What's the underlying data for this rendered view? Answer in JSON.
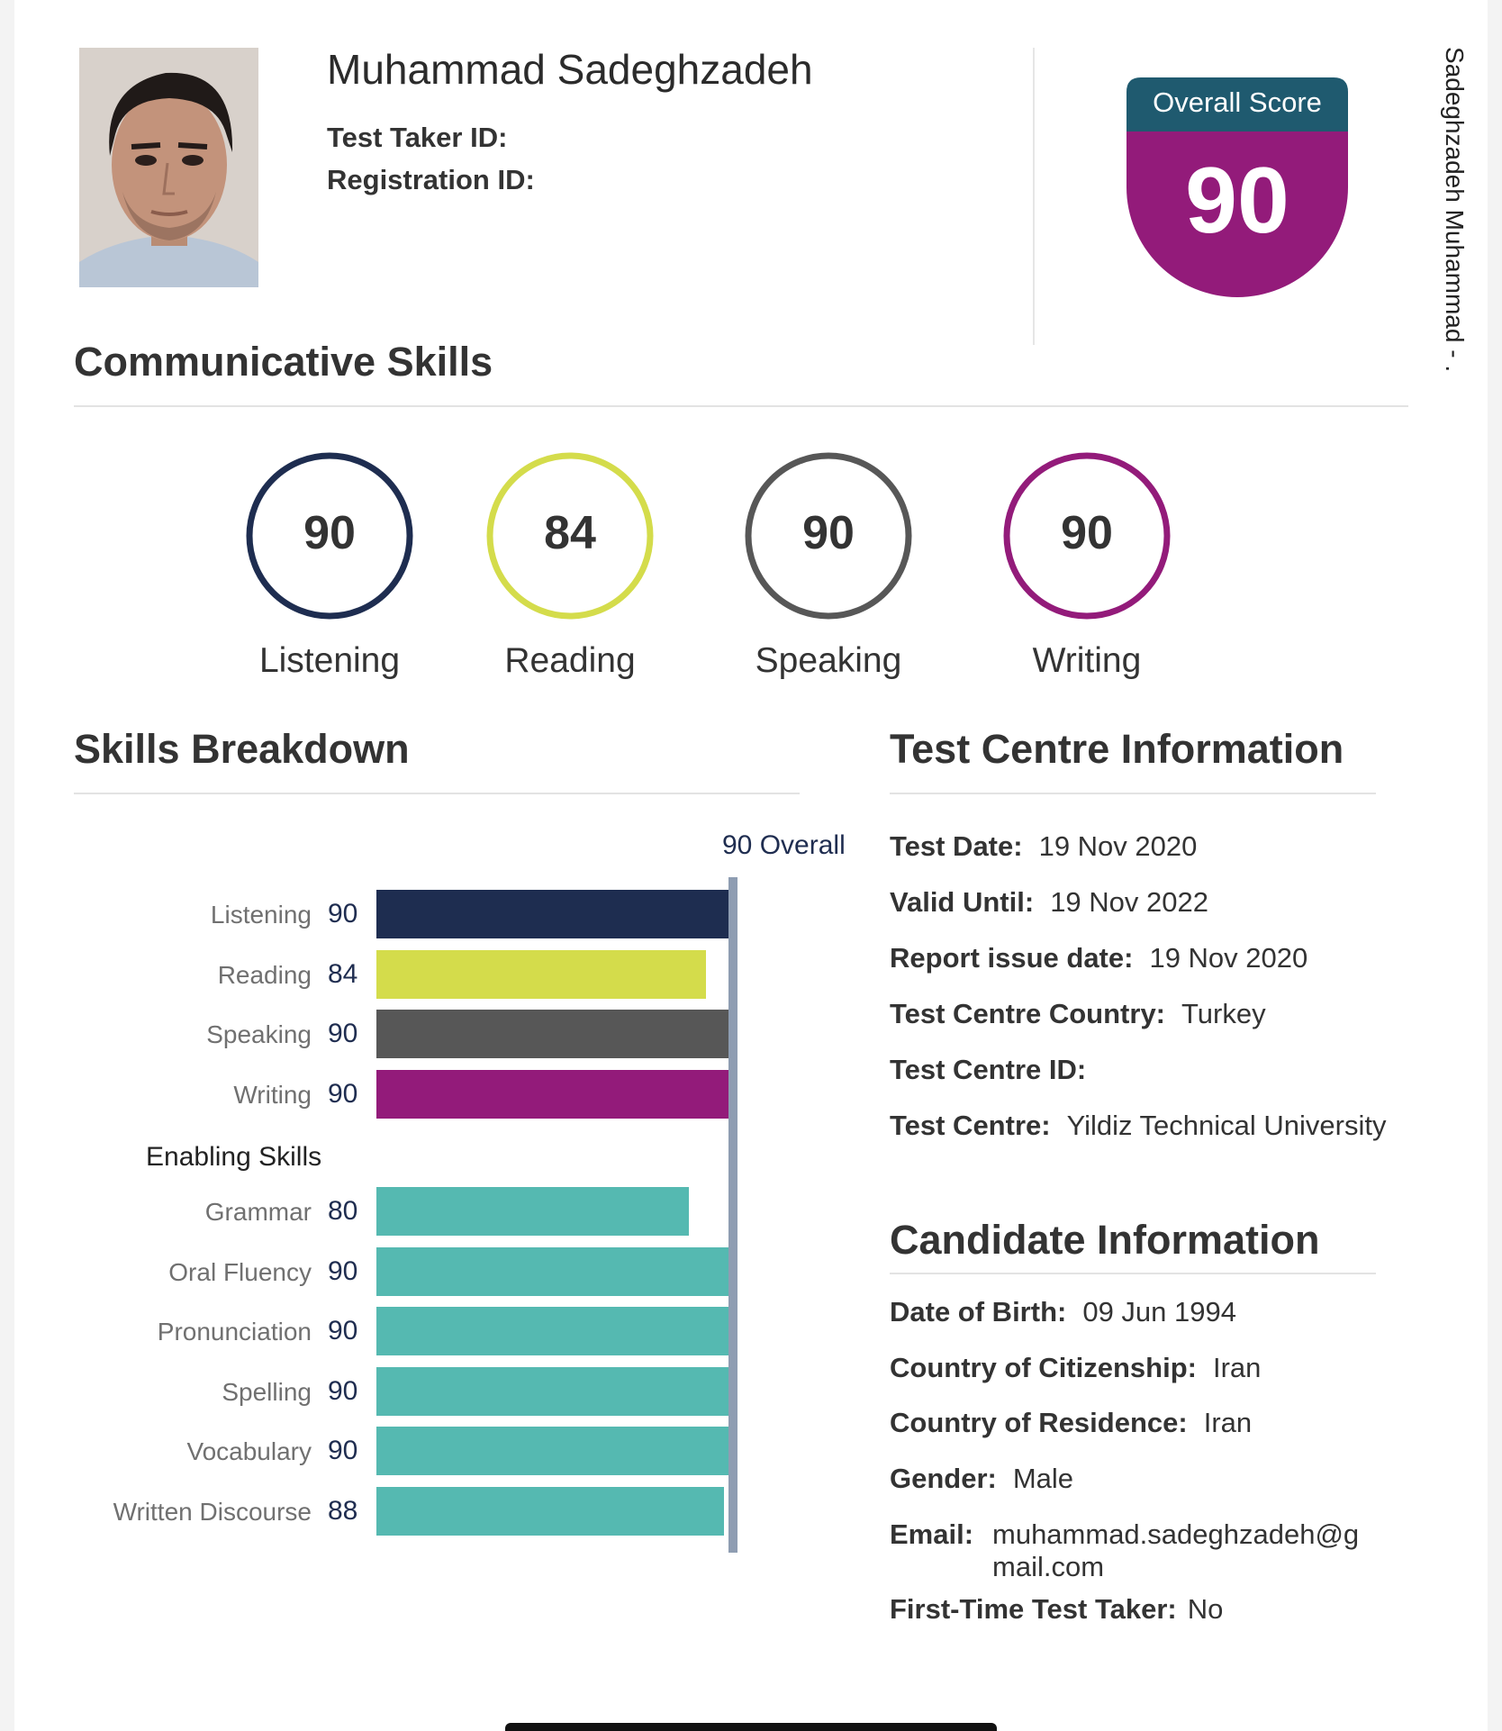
{
  "header": {
    "candidate_name": "Muhammad Sadeghzadeh",
    "test_taker_id_label": "Test Taker ID:",
    "registration_id_label": "Registration ID:",
    "side_text": "Sadeghzadeh Muhammad - ..."
  },
  "overall": {
    "label": "Overall Score",
    "score": "90"
  },
  "communicative": {
    "title": "Communicative Skills",
    "skills": [
      {
        "name": "Listening",
        "score": "90",
        "color": "#1e2d50"
      },
      {
        "name": "Reading",
        "score": "84",
        "color": "#d4dc4b"
      },
      {
        "name": "Speaking",
        "score": "90",
        "color": "#575757"
      },
      {
        "name": "Writing",
        "score": "90",
        "color": "#931b7a"
      }
    ]
  },
  "breakdown": {
    "title": "Skills Breakdown",
    "overall_marker": "90 Overall",
    "enabling_title": "Enabling Skills"
  },
  "chart_data": {
    "type": "bar",
    "orientation": "horizontal",
    "xlim": [
      10,
      90
    ],
    "reference_line": {
      "value": 90,
      "label": "90 Overall"
    },
    "groups": [
      {
        "name": "",
        "categories": [
          "Listening",
          "Reading",
          "Speaking",
          "Writing"
        ],
        "values": [
          90,
          84,
          90,
          90
        ],
        "colors": [
          "#1e2d50",
          "#d4dc4b",
          "#575757",
          "#931b7a"
        ]
      },
      {
        "name": "Enabling Skills",
        "categories": [
          "Grammar",
          "Oral Fluency",
          "Pronunciation",
          "Spelling",
          "Vocabulary",
          "Written Discourse"
        ],
        "values": [
          80,
          90,
          90,
          90,
          90,
          88
        ],
        "colors": [
          "#55b9b1",
          "#55b9b1",
          "#55b9b1",
          "#55b9b1",
          "#55b9b1",
          "#55b9b1"
        ]
      }
    ]
  },
  "test_centre": {
    "title": "Test Centre Information",
    "rows": [
      {
        "label": "Test Date:",
        "value": "19 Nov 2020"
      },
      {
        "label": "Valid Until:",
        "value": "19 Nov 2022"
      },
      {
        "label": "Report issue date:",
        "value": "19 Nov 2020"
      },
      {
        "label": "Test Centre Country:",
        "value": "Turkey"
      },
      {
        "label": "Test Centre ID:",
        "value": ""
      },
      {
        "label": "Test Centre:",
        "value": "Yildiz Technical University"
      }
    ]
  },
  "candidate": {
    "title": "Candidate Information",
    "rows": [
      {
        "label": "Date of Birth:",
        "value": "09 Jun 1994"
      },
      {
        "label": "Country of Citizenship:",
        "value": "Iran"
      },
      {
        "label": "Country of Residence:",
        "value": "Iran"
      },
      {
        "label": "Gender:",
        "value": "Male"
      }
    ],
    "email_label": "Email:",
    "email_line1": "muhammad.sadeghzadeh@g",
    "email_line2": "mail.com",
    "first_time_label": "First-Time Test Taker:",
    "first_time_value": "No"
  }
}
